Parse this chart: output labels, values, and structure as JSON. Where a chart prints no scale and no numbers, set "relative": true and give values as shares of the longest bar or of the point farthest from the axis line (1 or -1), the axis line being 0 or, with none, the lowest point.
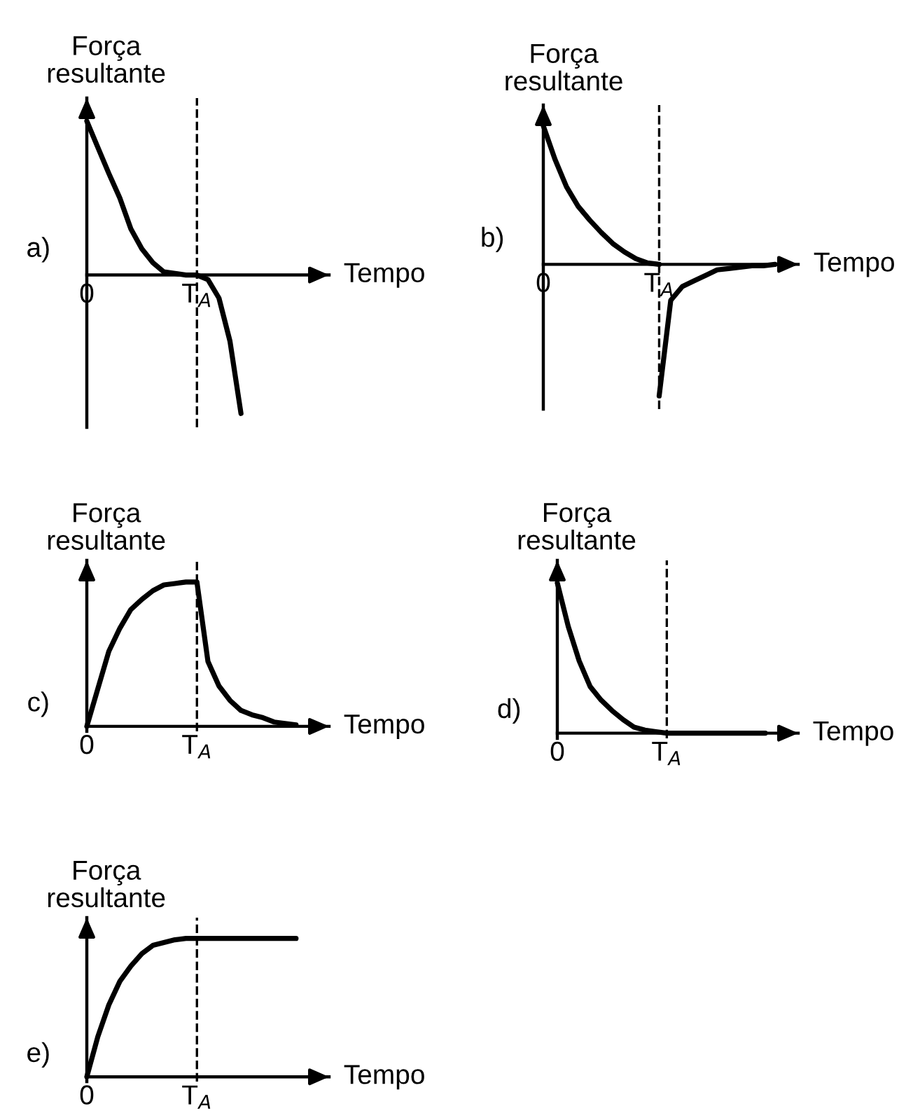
{
  "chart_data": [
    {
      "type": "line",
      "title": "a)",
      "xlabel": "Tempo",
      "ylabel": "Força\nresultante",
      "relative": true,
      "categories": [
        "0",
        null,
        null,
        null,
        null,
        null,
        null,
        null,
        null,
        null,
        "T$_{A}$",
        null,
        null,
        null,
        null,
        null,
        null,
        null,
        null,
        null,
        null,
        null
      ],
      "ref_lines": [
        {
          "axis": "x",
          "value": "T$_{A}$",
          "line_style": "dashed",
          "color": "#000000"
        }
      ],
      "series": [
        {
          "color": "#000000",
          "values": [
            1.0,
            0.83,
            0.66,
            0.5,
            0.3,
            0.17,
            0.08,
            0.02,
            0.01,
            0,
            0,
            -0.03,
            -0.15,
            -0.43,
            -0.9,
            null,
            null,
            null,
            null,
            null,
            null,
            null
          ]
        }
      ]
    },
    {
      "type": "line",
      "title": "b)",
      "xlabel": "Tempo",
      "ylabel": "Força\nresultante",
      "relative": true,
      "categories": [
        "0",
        null,
        null,
        null,
        null,
        null,
        null,
        null,
        null,
        null,
        "T$_{A}$",
        null,
        null,
        null,
        null,
        null,
        null,
        null,
        null,
        null,
        null,
        null
      ],
      "ref_lines": [
        {
          "axis": "x",
          "value": "T$_{A}$",
          "line_style": "dashed",
          "color": "#000000"
        }
      ],
      "series": [
        {
          "color": "#000000",
          "values": [
            1.0,
            0.76,
            0.56,
            0.42,
            0.32,
            0.23,
            0.15,
            0.09,
            0.04,
            0.01,
            0,
            null,
            null,
            null,
            null,
            null,
            null,
            null,
            null,
            null,
            null,
            null
          ]
        },
        {
          "color": "#000000",
          "values": [
            null,
            null,
            null,
            null,
            null,
            null,
            null,
            null,
            null,
            null,
            -0.95,
            -0.26,
            -0.16,
            -0.12,
            -0.08,
            -0.04,
            -0.03,
            -0.02,
            -0.01,
            -0.01,
            0,
            null
          ]
        }
      ]
    },
    {
      "type": "line",
      "title": "c)",
      "xlabel": "Tempo",
      "ylabel": "Força\nresultante",
      "relative": true,
      "categories": [
        "0",
        null,
        null,
        null,
        null,
        null,
        null,
        null,
        null,
        null,
        "T$_{A}$",
        null,
        null,
        null,
        null,
        null,
        null,
        null,
        null,
        null,
        null,
        null
      ],
      "ref_lines": [
        {
          "axis": "x",
          "value": "T$_{A}$",
          "line_style": "dashed",
          "color": "#000000"
        }
      ],
      "series": [
        {
          "color": "#000000",
          "values": [
            0,
            0.26,
            0.52,
            0.68,
            0.81,
            0.88,
            0.94,
            0.98,
            0.99,
            1.0,
            1.0,
            0.45,
            0.28,
            0.18,
            0.11,
            0.08,
            0.06,
            0.03,
            0.02,
            0.01,
            null,
            null
          ]
        }
      ]
    },
    {
      "type": "line",
      "title": "d)",
      "xlabel": "Tempo",
      "ylabel": "Força\nresultante",
      "relative": true,
      "categories": [
        "0",
        null,
        null,
        null,
        null,
        null,
        null,
        null,
        null,
        null,
        "T$_{A}$",
        null,
        null,
        null,
        null,
        null,
        null,
        null,
        null,
        null,
        null,
        null
      ],
      "ref_lines": [
        {
          "axis": "x",
          "value": "T$_{A}$",
          "line_style": "dashed",
          "color": "#000000"
        }
      ],
      "series": [
        {
          "color": "#000000",
          "values": [
            1.0,
            0.71,
            0.48,
            0.31,
            0.22,
            0.15,
            0.09,
            0.04,
            0.02,
            0.01,
            0,
            0,
            0,
            0,
            0,
            0,
            0,
            0,
            0,
            0,
            null,
            null
          ]
        }
      ]
    },
    {
      "type": "line",
      "title": "e)",
      "xlabel": "Tempo",
      "ylabel": "Força\nresultante",
      "relative": true,
      "categories": [
        "0",
        null,
        null,
        null,
        null,
        null,
        null,
        null,
        null,
        null,
        "T$_{A}$",
        null,
        null,
        null,
        null,
        null,
        null,
        null,
        null,
        null,
        null,
        null
      ],
      "ref_lines": [
        {
          "axis": "x",
          "value": "T$_{A}$",
          "line_style": "dashed",
          "color": "#000000"
        }
      ],
      "series": [
        {
          "color": "#000000",
          "values": [
            0,
            0.29,
            0.52,
            0.69,
            0.8,
            0.89,
            0.95,
            0.97,
            0.99,
            1.0,
            1.0,
            1.0,
            1.0,
            1.0,
            1.0,
            1.0,
            1.0,
            1.0,
            1.0,
            1.0,
            null,
            null
          ]
        }
      ]
    }
  ]
}
